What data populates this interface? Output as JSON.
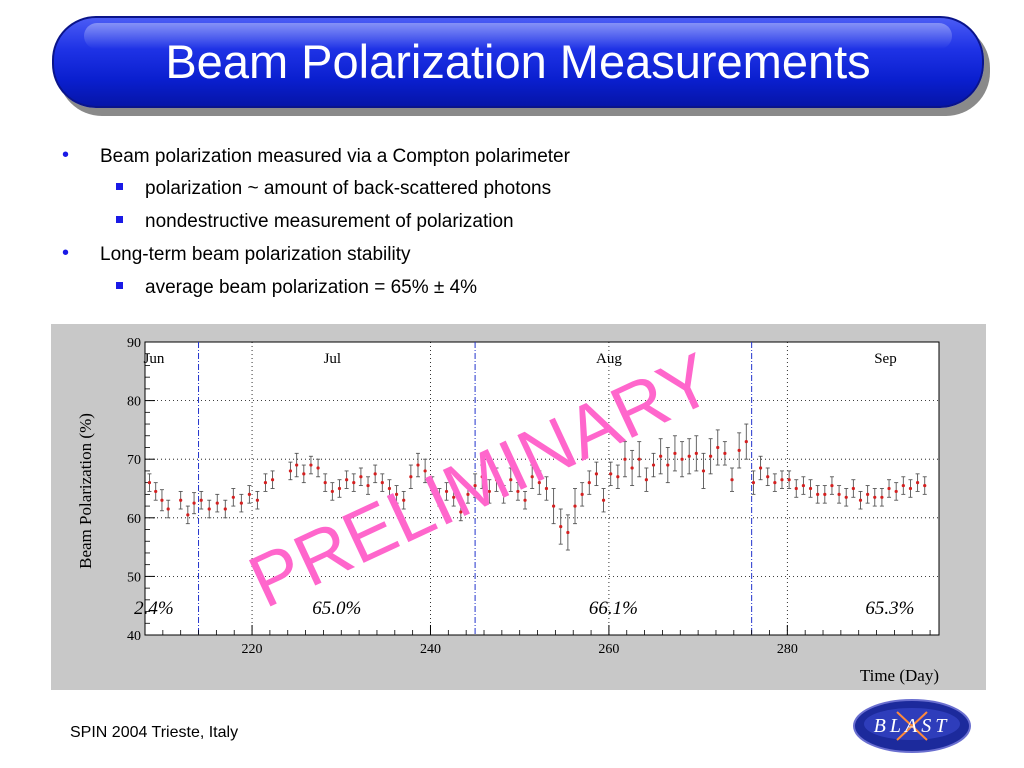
{
  "slide": {
    "title": "Beam Polarization Measurements",
    "bullets": [
      {
        "level": 1,
        "text": "Beam polarization measured via a Compton polarimeter"
      },
      {
        "level": 2,
        "text": "polarization ~ amount of back-scattered photons"
      },
      {
        "level": 2,
        "text": "nondestructive measurement of polarization"
      },
      {
        "level": 1,
        "text": "Long-term beam polarization stability"
      },
      {
        "level": 2,
        "text": "average beam polarization = 65% ± 4%"
      }
    ],
    "footer": "SPIN 2004 Trieste, Italy",
    "logo_text": "BLAST",
    "colors": {
      "title_bar": "#1f33e6",
      "bullet": "#1a1ae6",
      "watermark": "#ff66cc",
      "points": "#d42020"
    }
  },
  "chart_data": {
    "type": "scatter",
    "xlabel": "Time (Day)",
    "ylabel": "Beam Polarization (%)",
    "xlim": [
      208,
      297
    ],
    "ylim": [
      40,
      90
    ],
    "xticks": [
      220,
      240,
      260,
      280
    ],
    "yticks": [
      40,
      50,
      60,
      70,
      80,
      90
    ],
    "grid": true,
    "month_boundaries": [
      214,
      245,
      276
    ],
    "month_labels": [
      {
        "label": "Jun",
        "x": 209
      },
      {
        "label": "Jul",
        "x": 229
      },
      {
        "label": "Aug",
        "x": 260
      },
      {
        "label": "Sep",
        "x": 291
      }
    ],
    "averages": [
      {
        "label": "2.4%",
        "x": 209
      },
      {
        "label": "65.0%",
        "x": 229.5
      },
      {
        "label": "66.1%",
        "x": 260.5
      },
      {
        "label": "65.3%",
        "x": 291.5
      }
    ],
    "watermark": "PRELIMINARY",
    "series": [
      {
        "x": [
          208.5,
          209.2,
          209.9,
          210.6,
          212.0,
          212.8,
          213.5,
          214.3,
          215.2,
          216.1,
          217.0,
          217.9,
          218.8,
          219.7,
          220.6,
          221.5,
          222.3,
          224.3,
          225.0,
          225.8,
          226.6,
          227.4,
          228.2,
          229.0,
          229.8,
          230.6,
          231.4,
          232.2,
          233.0,
          233.8,
          234.6,
          235.4,
          236.2,
          237.0,
          237.8,
          238.6,
          239.4,
          240.2,
          241.0,
          241.8,
          242.6,
          243.4,
          244.2,
          245.0,
          245.8,
          246.6,
          247.4,
          248.2,
          249.0,
          249.8,
          250.6,
          251.4,
          252.2,
          253.0,
          253.8,
          254.6,
          255.4,
          256.2,
          257.0,
          257.8,
          258.6,
          259.4,
          260.2,
          261.0,
          261.8,
          262.6,
          263.4,
          264.2,
          265.0,
          265.8,
          266.6,
          267.4,
          268.2,
          269.0,
          269.8,
          270.6,
          271.4,
          272.2,
          273.0,
          273.8,
          274.6,
          275.4,
          276.2,
          277.0,
          277.8,
          278.6,
          279.4,
          280.2,
          281.0,
          281.8,
          282.6,
          283.4,
          284.2,
          285.0,
          285.8,
          286.6,
          287.4,
          288.2,
          289.0,
          289.8,
          290.6,
          291.4,
          292.2,
          293.0,
          293.8,
          294.6,
          295.4
        ],
        "y": [
          66,
          64.5,
          63,
          61.5,
          63,
          60.5,
          62.5,
          63,
          61.5,
          62.5,
          61.5,
          63.5,
          62.5,
          64,
          63,
          66,
          66.5,
          68,
          69,
          67.5,
          69,
          68.5,
          66,
          64.5,
          65,
          66.5,
          66,
          67,
          65.5,
          67.5,
          66,
          65,
          64,
          63,
          67,
          69,
          68,
          65.5,
          63.5,
          64.5,
          63.5,
          61,
          64,
          65.5,
          67,
          64.5,
          66.5,
          64,
          66.5,
          64.5,
          63,
          67,
          66,
          65,
          62,
          58.5,
          57.5,
          62,
          64,
          66,
          67.5,
          63,
          67.5,
          67,
          70,
          68.5,
          70,
          66.5,
          69,
          70.5,
          69,
          71,
          70,
          70.5,
          71,
          68,
          70.5,
          72,
          71,
          66.5,
          71.5,
          73,
          66,
          68.5,
          67,
          66,
          66.5,
          66.5,
          65,
          65.5,
          65,
          64,
          64,
          65.5,
          64,
          63.5,
          65,
          63,
          64,
          63.5,
          63.5,
          65,
          64.5,
          65.5,
          65,
          66,
          65.5
        ],
        "yerr": [
          1.5,
          1.5,
          1.8,
          1.5,
          1.5,
          1.5,
          1.8,
          1.5,
          1.5,
          1.5,
          1.5,
          1.5,
          1.5,
          1.5,
          1.5,
          1.5,
          1.5,
          1.5,
          2,
          1.5,
          1.5,
          1.5,
          1.5,
          1.5,
          1.5,
          1.5,
          1.5,
          1.5,
          1.5,
          1.5,
          1.5,
          1.5,
          1.5,
          1.5,
          2,
          2,
          2,
          1.5,
          1.5,
          1.5,
          1.5,
          1.5,
          1.5,
          2,
          2,
          2,
          2,
          1.5,
          2,
          1.5,
          1.5,
          2,
          2,
          2,
          3,
          3,
          3,
          3,
          2,
          2,
          2,
          2,
          2,
          2,
          3,
          3,
          3,
          2,
          2,
          3,
          3,
          3,
          3,
          3,
          3,
          3,
          3,
          3,
          2,
          2,
          3,
          3,
          2,
          2,
          1.5,
          1.5,
          1.5,
          1.5,
          1.5,
          1.5,
          1.5,
          1.5,
          1.5,
          1.5,
          1.5,
          1.5,
          1.5,
          1.5,
          1.5,
          1.5,
          1.5,
          1.5,
          1.5,
          1.5,
          1.5,
          1.5,
          1.5
        ]
      }
    ]
  }
}
